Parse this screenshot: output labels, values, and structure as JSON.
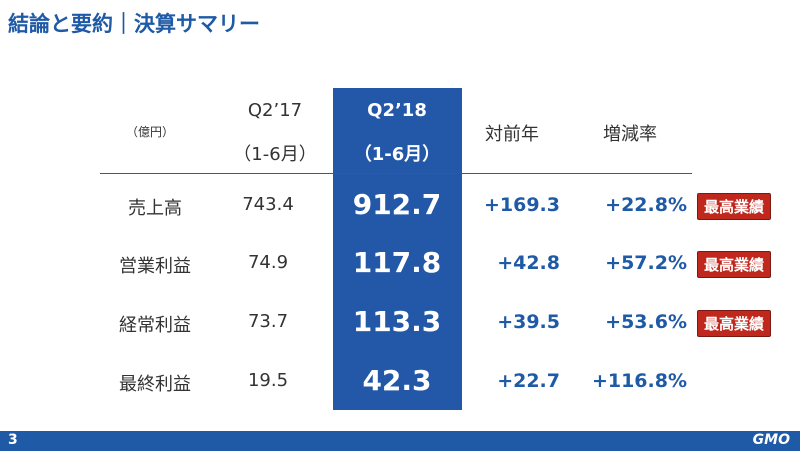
{
  "header": {
    "title": "結論と要約｜決算サマリー"
  },
  "table": {
    "unit": "（億円）",
    "columns": [
      {
        "line1": "Q2’17",
        "line2": "（1-6月）"
      },
      {
        "line1": "Q2’18",
        "line2": "（1-6月）"
      },
      {
        "line1": "対前年"
      },
      {
        "line1": "増減率"
      }
    ],
    "rows": [
      {
        "label": "売上高",
        "cells": [
          "743.4",
          "912.7",
          "+169.3",
          "+22.8%"
        ],
        "badge": "最高業績"
      },
      {
        "label": "営業利益",
        "cells": [
          "74.9",
          "117.8",
          "+42.8",
          "+57.2%"
        ],
        "badge": "最高業績"
      },
      {
        "label": "経常利益",
        "cells": [
          "73.7",
          "113.3",
          "+39.5",
          "+53.6%"
        ],
        "badge": "最高業績"
      },
      {
        "label": "最終利益",
        "cells": [
          "19.5",
          "42.3",
          "+22.7",
          "+116.8%"
        ]
      }
    ]
  },
  "footer": {
    "page": "3",
    "logo": "GMO"
  }
}
